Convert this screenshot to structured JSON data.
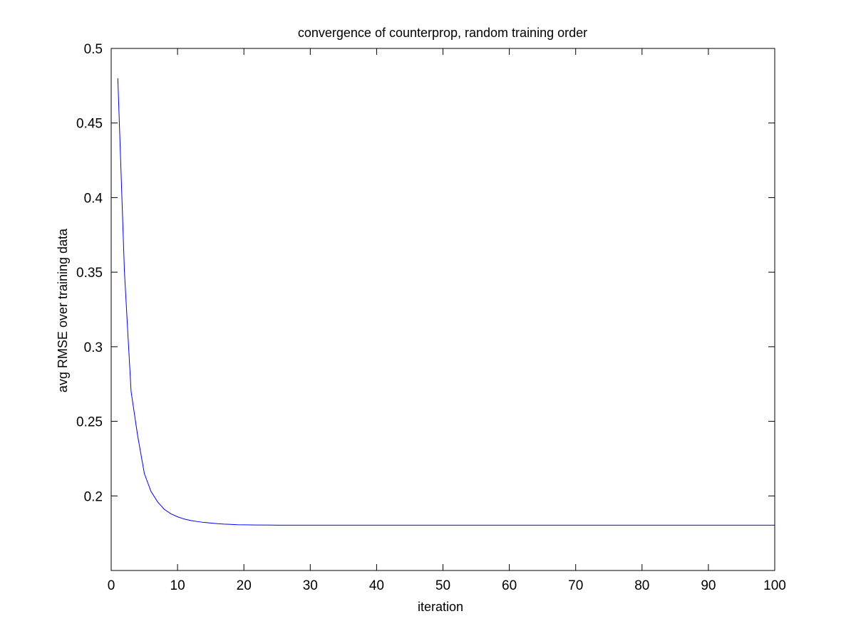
{
  "chart_data": {
    "type": "line",
    "title": "convergence of counterprop, random training order",
    "xlabel": "iteration",
    "ylabel": "avg RMSE over training data",
    "xlim": [
      0,
      100
    ],
    "ylim": [
      0.15,
      0.5
    ],
    "xticks": [
      0,
      10,
      20,
      30,
      40,
      50,
      60,
      70,
      80,
      90,
      100
    ],
    "yticks": [
      0.2,
      0.25,
      0.3,
      0.35,
      0.4,
      0.45,
      0.5
    ],
    "xtick_labels": [
      "0",
      "10",
      "20",
      "30",
      "40",
      "50",
      "60",
      "70",
      "80",
      "90",
      "100"
    ],
    "ytick_labels": [
      "0.2",
      "0.25",
      "0.3",
      "0.35",
      "0.4",
      "0.45",
      "0.5"
    ],
    "grid": false,
    "series": [
      {
        "name": "avg RMSE",
        "color": "#0000ff",
        "x": [
          1,
          2,
          3,
          4,
          5,
          6,
          7,
          8,
          9,
          10,
          11,
          12,
          13,
          14,
          15,
          16,
          17,
          18,
          19,
          20,
          22,
          25,
          30,
          40,
          50,
          60,
          70,
          80,
          90,
          100
        ],
        "y": [
          0.48,
          0.35,
          0.27,
          0.24,
          0.215,
          0.203,
          0.196,
          0.191,
          0.188,
          0.186,
          0.1845,
          0.1835,
          0.1828,
          0.1822,
          0.1818,
          0.1814,
          0.1811,
          0.1809,
          0.1807,
          0.1806,
          0.1805,
          0.1804,
          0.1804,
          0.1804,
          0.1804,
          0.1804,
          0.1804,
          0.1804,
          0.1804,
          0.1804
        ]
      }
    ]
  }
}
